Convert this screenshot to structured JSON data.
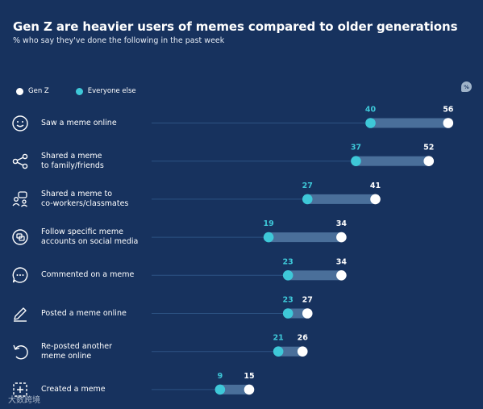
{
  "title": "Gen Z are heavier users of memes compared to older generations",
  "subtitle": "% who say they've done the following in the past week",
  "legend": [
    {
      "label": "Gen Z",
      "color": "#ffffff"
    },
    {
      "label": "Everyone else",
      "color": "#3ec8d8"
    }
  ],
  "badge": "%",
  "watermark": "大数跨境",
  "colors": {
    "background": "#17325e",
    "genz": "#ffffff",
    "everyone_else": "#3ec8d8",
    "range_bar": "#4a6f9a",
    "guide_line": "#2d5383",
    "everyone_else_label": "#3ec8d8"
  },
  "icons": [
    "smiley-icon",
    "share-icon",
    "people-chat-icon",
    "social-media-icon",
    "comment-icon",
    "pencil-icon",
    "repost-icon",
    "create-icon"
  ],
  "chart_data": {
    "type": "dot-range",
    "categories": [
      "Saw a meme online",
      "Shared a meme\nto family/friends",
      "Shared a meme to\nco-workers/classmates",
      "Follow specific meme\naccounts on social media",
      "Commented on a meme",
      "Posted a meme online",
      "Re-posted another\nmeme online",
      "Created a meme"
    ],
    "series": [
      {
        "name": "Everyone else",
        "values": [
          40,
          37,
          27,
          19,
          23,
          23,
          21,
          9
        ]
      },
      {
        "name": "Gen Z",
        "values": [
          56,
          52,
          41,
          34,
          34,
          27,
          26,
          15
        ]
      }
    ]
  }
}
